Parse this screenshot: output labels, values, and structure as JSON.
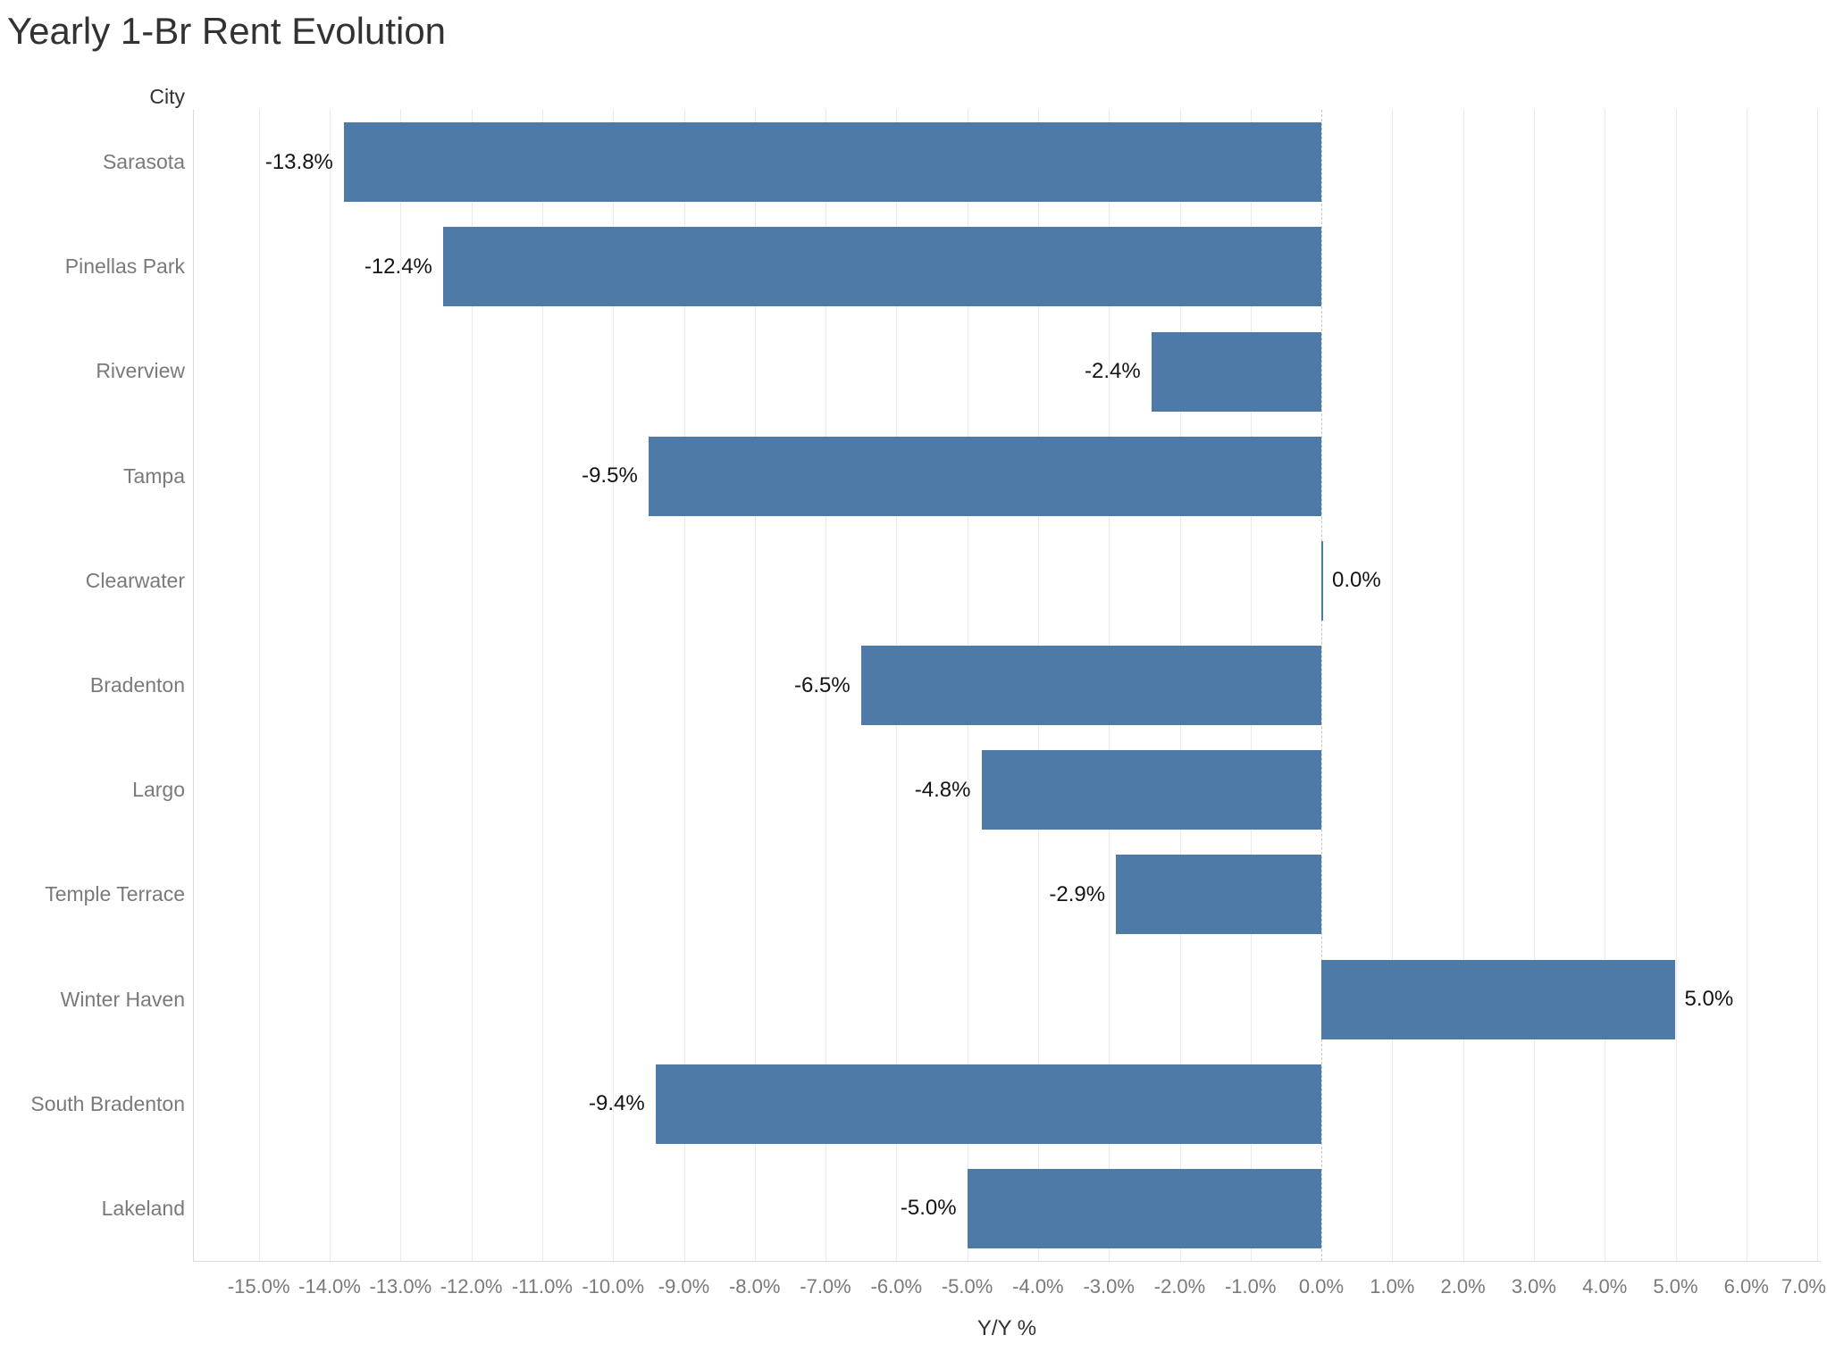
{
  "title": "Yearly 1-Br Rent Evolution",
  "city_axis_label": "City",
  "xlabel": "Y/Y %",
  "colors": {
    "bar": "#4e7aa8",
    "gridline": "#e9e9e9",
    "zero_line": "#c4c4c4",
    "axis_line": "#d9d9d9",
    "title_text": "#323232",
    "axis_text": "#7a7a7a",
    "value_text": "#141414"
  },
  "chart_data": {
    "type": "bar",
    "orientation": "horizontal",
    "title": "Yearly 1-Br Rent Evolution",
    "xlabel": "Y/Y %",
    "ylabel": "City",
    "categories": [
      "Sarasota",
      "Pinellas Park",
      "Riverview",
      "Tampa",
      "Clearwater",
      "Bradenton",
      "Largo",
      "Temple Terrace",
      "Winter Haven",
      "South Bradenton",
      "Lakeland"
    ],
    "values": [
      -13.8,
      -12.4,
      -2.4,
      -9.5,
      0.0,
      -6.5,
      -4.8,
      -2.9,
      5.0,
      -9.4,
      -5.0
    ],
    "value_labels": [
      "-13.8%",
      "-12.4%",
      "-2.4%",
      "-9.5%",
      "0.0%",
      "-6.5%",
      "-4.8%",
      "-2.9%",
      "5.0%",
      "-9.4%",
      "-5.0%"
    ],
    "xlim": [
      -15.93,
      7.05
    ],
    "xticks": [
      -15,
      -14,
      -13,
      -12,
      -11,
      -10,
      -9,
      -8,
      -7,
      -6,
      -5,
      -4,
      -3,
      -2,
      -1,
      0,
      1,
      2,
      3,
      4,
      5,
      6,
      7
    ],
    "xtick_labels": [
      "-15.0%",
      "-14.0%",
      "-13.0%",
      "-12.0%",
      "-11.0%",
      "-10.0%",
      "-9.0%",
      "-8.0%",
      "-7.0%",
      "-6.0%",
      "-5.0%",
      "-4.0%",
      "-3.0%",
      "-2.0%",
      "-1.0%",
      "0.0%",
      "1.0%",
      "2.0%",
      "3.0%",
      "4.0%",
      "5.0%",
      "6.0%",
      "7.0%"
    ],
    "grid": true,
    "zero_line": "dashed",
    "legend": "none",
    "bar_color": "#4e7aa8"
  }
}
